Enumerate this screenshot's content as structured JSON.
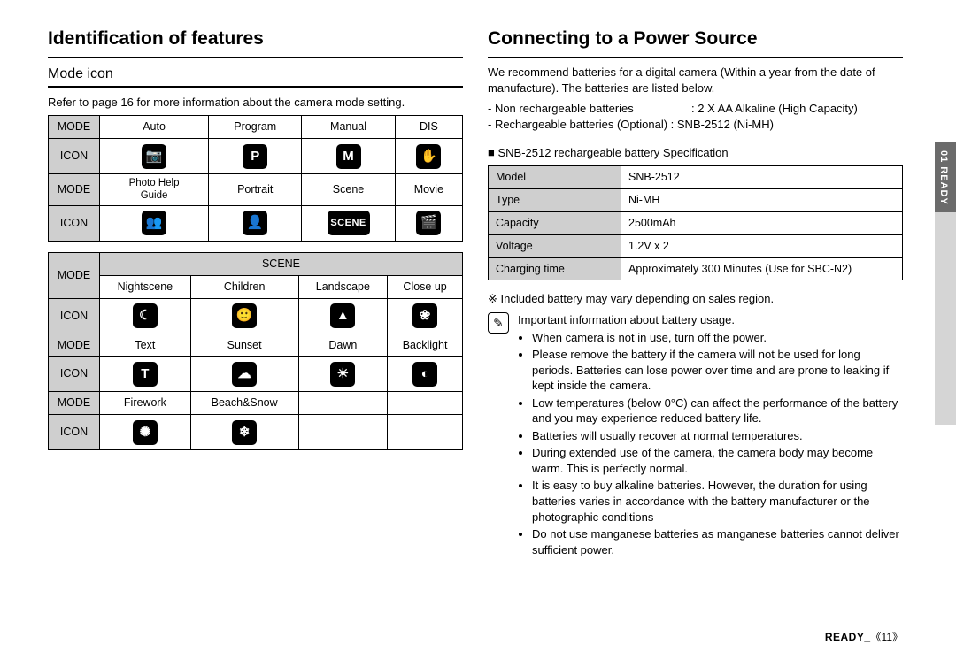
{
  "left": {
    "heading": "Identification of features",
    "sub": "Mode icon",
    "lead": "Refer to page 16 for more information about the camera mode setting.",
    "table1": {
      "rows": [
        {
          "h": "MODE",
          "c": [
            "Auto",
            "Program",
            "Manual",
            "DIS"
          ]
        },
        {
          "h": "ICON",
          "icons": [
            "📷",
            "P",
            "M",
            "✋"
          ]
        },
        {
          "h": "MODE",
          "c": [
            "Photo Help Guide",
            "Portrait",
            "Scene",
            "Movie"
          ]
        },
        {
          "h": "ICON",
          "icons": [
            "👥",
            "👤",
            "SCENE",
            "🎬"
          ]
        }
      ]
    },
    "table2": {
      "sceneHead": "SCENE",
      "rows": [
        {
          "h": "MODE",
          "c": [
            "Nightscene",
            "Children",
            "Landscape",
            "Close up"
          ]
        },
        {
          "h": "ICON",
          "icons": [
            "☾",
            "🙂",
            "▲",
            "❀"
          ]
        },
        {
          "h": "MODE",
          "c": [
            "Text",
            "Sunset",
            "Dawn",
            "Backlight"
          ]
        },
        {
          "h": "ICON",
          "icons": [
            "T",
            "☁",
            "☀",
            "◐"
          ]
        },
        {
          "h": "MODE",
          "c": [
            "Firework",
            "Beach&Snow",
            "-",
            "-"
          ]
        },
        {
          "h": "ICON",
          "icons": [
            "✺",
            "❄",
            "",
            ""
          ]
        }
      ]
    }
  },
  "right": {
    "heading": "Connecting to a Power Source",
    "p1": "We recommend batteries for a digital camera (Within a year from the date of manufacture). The batteries are listed below.",
    "li1a": "- Non rechargeable batteries",
    "li1b": ": 2 X AA Alkaline (High Capacity)",
    "li2": "- Rechargeable batteries (Optional) : SNB-2512 (Ni-MH)",
    "specTitle": "SNB-2512 rechargeable battery Specification",
    "spec": [
      [
        "Model",
        "SNB-2512"
      ],
      [
        "Type",
        "Ni-MH"
      ],
      [
        "Capacity",
        "2500mAh"
      ],
      [
        "Voltage",
        "1.2V x 2"
      ],
      [
        "Charging time",
        "Approximately 300 Minutes (Use for SBC-N2)"
      ]
    ],
    "note1": "※ Included battery may vary depending on sales region.",
    "important": "Important information about battery usage.",
    "bullets": [
      "When camera is not in use, turn off the power.",
      "Please remove the battery if the camera will not be used for long periods. Batteries can lose power over time and are prone to leaking if kept inside the camera.",
      "Low temperatures (below 0°C) can affect the performance of the battery and you may experience reduced battery life.",
      "Batteries will usually recover at normal temperatures.",
      "During extended use of the camera, the camera body may become warm. This is perfectly normal.",
      "It is easy to buy alkaline batteries. However, the duration for using batteries varies in accordance with the battery manufacturer or the photographic conditions",
      "Do not use manganese batteries as manganese batteries cannot deliver sufficient power."
    ]
  },
  "side": {
    "label": "01 READY"
  },
  "footer": {
    "label": "READY_",
    "page": "《11》"
  }
}
